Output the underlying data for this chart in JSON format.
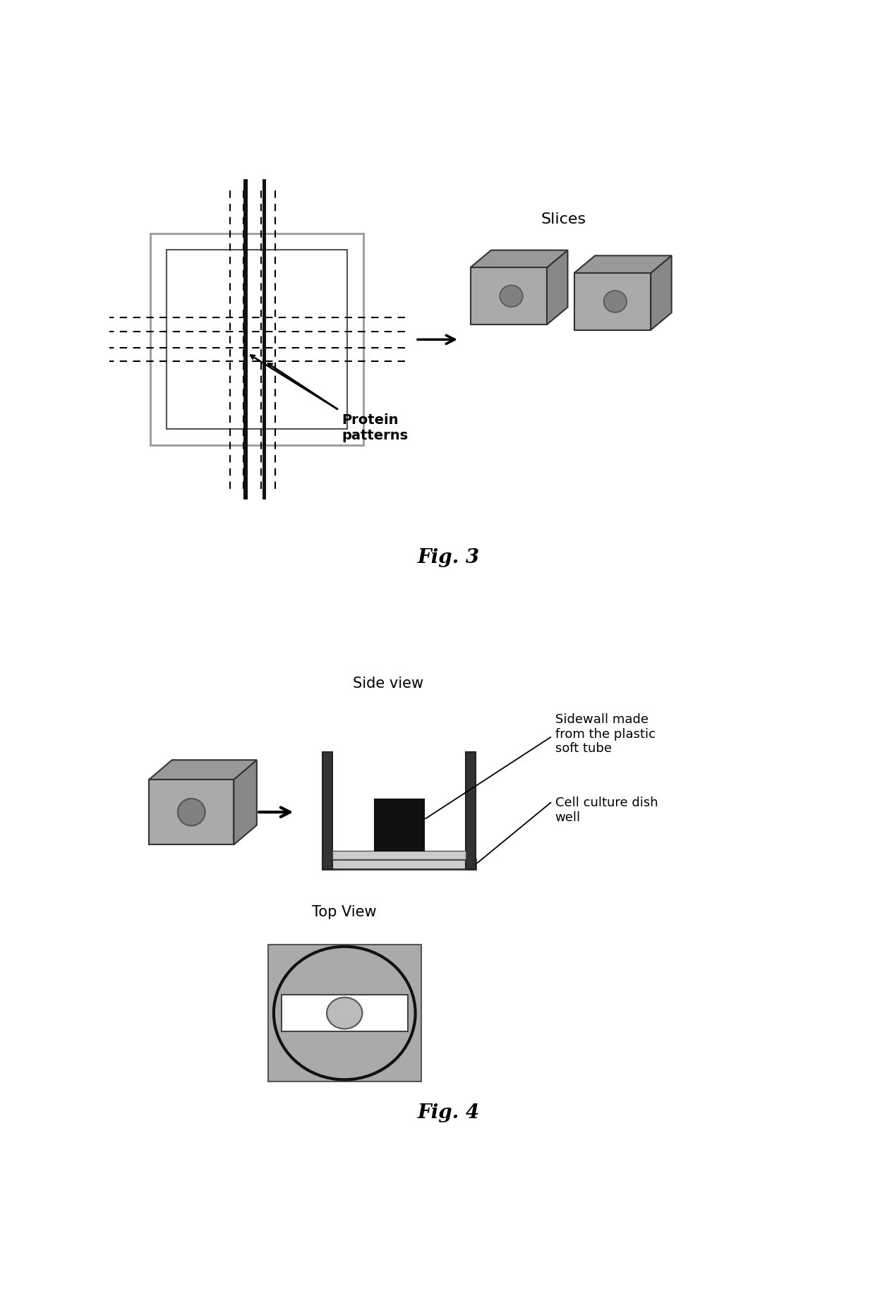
{
  "fig3_label": "Fig. 3",
  "fig4_label": "Fig. 4",
  "slices_label": "Slices",
  "protein_label": "Protein\npatterns",
  "side_view_label": "Side view",
  "top_view_label": "Top View",
  "sidewall_label": "Sidewall made\nfrom the plastic\nsoft tube",
  "cell_culture_label": "Cell culture dish\nwell",
  "bg_color": "#ffffff",
  "gray_slice": "#aaaaaa",
  "gray_dark": "#888888",
  "gray_darker": "#666666",
  "black": "#111111"
}
